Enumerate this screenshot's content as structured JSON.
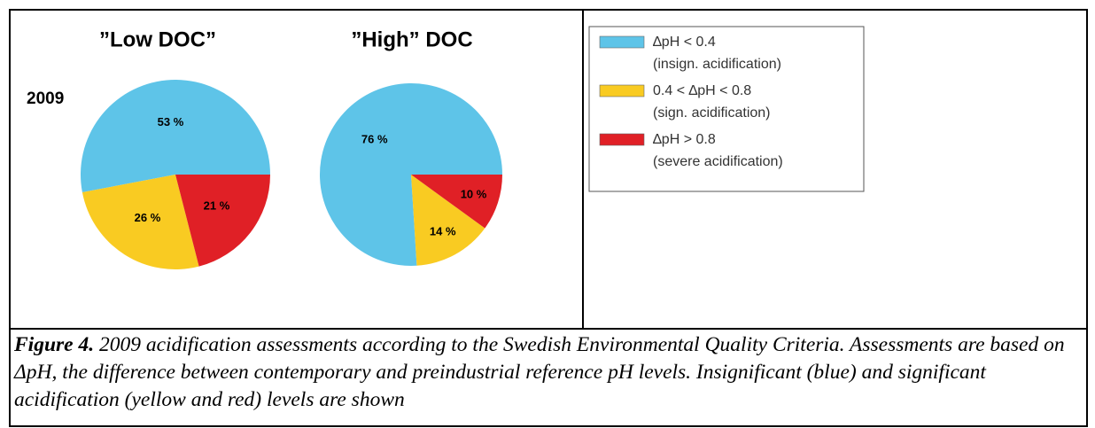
{
  "chart_data": {
    "type": "pie",
    "row_label": "2009",
    "categories": [
      "∆pH < 0.4",
      "0.4 <  ∆pH < 0.8",
      "∆pH > 0.8"
    ],
    "category_notes": [
      "(insign. acidification)",
      "(sign. acidification)",
      "(severe acidification)"
    ],
    "colors": [
      "#5ec4e8",
      "#f9cb22",
      "#e02026"
    ],
    "series": [
      {
        "name": "”Low DOC”",
        "values": [
          53,
          26,
          21
        ],
        "value_labels": [
          "53 %",
          "26 %",
          "21 %"
        ]
      },
      {
        "name": "”High” DOC",
        "values": [
          76,
          14,
          10
        ],
        "value_labels": [
          "76 %",
          "14 %",
          "10 %"
        ]
      }
    ]
  },
  "caption": {
    "label": "Figure 4.",
    "text": " 2009 acidification assessments according to the Swedish Environmental Quality Criteria. Assessments are based on ΔpH, the difference between contemporary and preindustrial reference pH levels. Insignificant (blue) and significant acidification (yellow and red) levels are shown"
  }
}
